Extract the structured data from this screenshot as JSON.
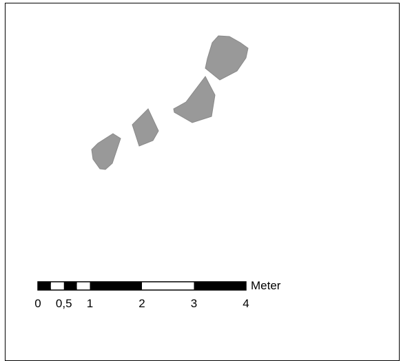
{
  "map": {
    "feature_color": "#999999",
    "feature_stroke": "#8a8a8a",
    "features": [
      {
        "id": "polygon-1"
      },
      {
        "id": "polygon-2"
      },
      {
        "id": "polygon-3"
      },
      {
        "id": "polygon-4"
      }
    ]
  },
  "scale_bar": {
    "unit_label": "Meter",
    "ticks": [
      {
        "label": "0",
        "value": 0
      },
      {
        "label": "0,5",
        "value": 0.5
      },
      {
        "label": "1",
        "value": 1
      },
      {
        "label": "2",
        "value": 2
      },
      {
        "label": "3",
        "value": 3
      },
      {
        "label": "4",
        "value": 4
      }
    ],
    "segments": [
      {
        "from": 0,
        "to": 0.25,
        "fill": "black"
      },
      {
        "from": 0.25,
        "to": 0.5,
        "fill": "white"
      },
      {
        "from": 0.5,
        "to": 0.75,
        "fill": "black"
      },
      {
        "from": 0.75,
        "to": 1,
        "fill": "white"
      },
      {
        "from": 1,
        "to": 2,
        "fill": "black"
      },
      {
        "from": 2,
        "to": 3,
        "fill": "white"
      },
      {
        "from": 3,
        "to": 4,
        "fill": "black"
      }
    ]
  }
}
